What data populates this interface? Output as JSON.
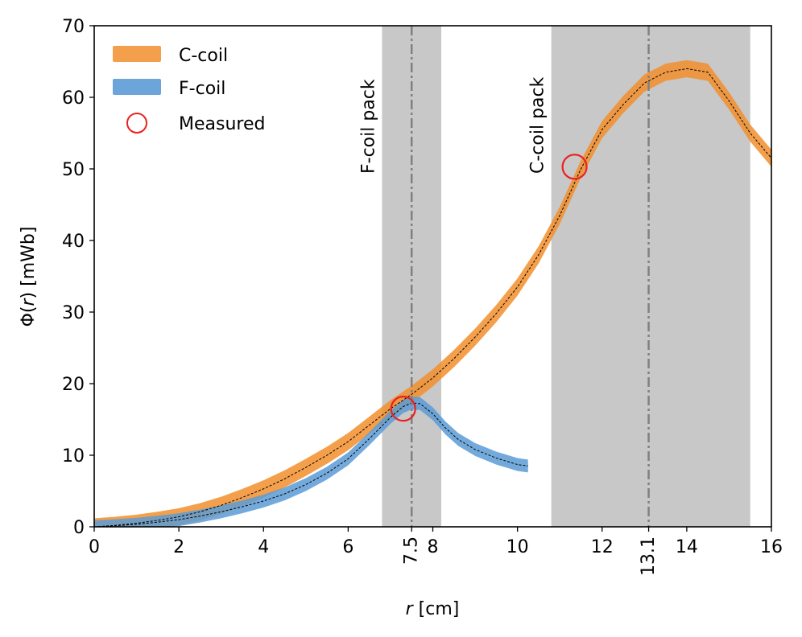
{
  "chart_data": {
    "type": "line",
    "xlabel_var": "r",
    "xlabel_unit": " [cm]",
    "ylabel_prefix": "Φ(",
    "ylabel_var": "r",
    "ylabel_suffix": ") [mWb]",
    "xlim": [
      0,
      16
    ],
    "ylim": [
      0,
      70
    ],
    "x_ticks": [
      0,
      2,
      4,
      6,
      8,
      10,
      12,
      14,
      16
    ],
    "y_ticks": [
      0,
      10,
      20,
      30,
      40,
      50,
      60,
      70
    ],
    "extra_x_ticks": [
      {
        "value": 7.5,
        "label": "7.5"
      },
      {
        "value": 13.1,
        "label": "13.1"
      }
    ],
    "shaded_regions": [
      {
        "name": "F-coil pack",
        "x_range": [
          6.8,
          8.2
        ],
        "center": 7.5,
        "label": "F-coil pack",
        "color": "#c8c8c8"
      },
      {
        "name": "C-coil pack",
        "x_range": [
          10.8,
          15.5
        ],
        "center": 13.1,
        "label": "C-coil pack",
        "color": "#c8c8c8"
      }
    ],
    "series": [
      {
        "name": "C-coil",
        "color": "#f28e2b",
        "x": [
          0,
          0.5,
          1,
          1.5,
          2,
          2.5,
          3,
          3.5,
          4,
          4.5,
          5,
          5.5,
          6,
          6.5,
          7,
          7.5,
          8,
          8.5,
          9,
          9.5,
          10,
          10.5,
          11,
          11.5,
          12,
          12.5,
          13,
          13.5,
          14,
          14.5,
          15,
          15.5,
          16
        ],
        "y": [
          0,
          0.2,
          0.5,
          0.9,
          1.4,
          2.1,
          3.0,
          4.1,
          5.3,
          6.7,
          8.3,
          10.0,
          11.9,
          14.2,
          16.5,
          18.5,
          20.8,
          23.5,
          26.5,
          29.8,
          33.5,
          38.0,
          43.5,
          50.0,
          55.5,
          59.0,
          62.0,
          63.5,
          64.0,
          63.5,
          59.5,
          55.0,
          51.5
        ],
        "band": 1.2
      },
      {
        "name": "F-coil",
        "color": "#5b9bd5",
        "x": [
          0,
          0.5,
          1,
          1.5,
          2,
          2.5,
          3,
          3.5,
          4,
          4.5,
          5,
          5.5,
          6,
          6.5,
          7,
          7.3,
          7.5,
          7.7,
          8,
          8.3,
          8.6,
          9,
          9.5,
          10,
          10.25
        ],
        "y": [
          0,
          0.15,
          0.35,
          0.65,
          1.0,
          1.5,
          2.1,
          2.8,
          3.6,
          4.6,
          5.9,
          7.5,
          9.5,
          12.3,
          15.3,
          16.8,
          17.3,
          17.2,
          15.8,
          13.8,
          12.2,
          10.8,
          9.6,
          8.7,
          8.5
        ],
        "band": 0.9
      }
    ],
    "measured": {
      "name": "Measured",
      "points": [
        {
          "x": 7.3,
          "y": 16.5
        },
        {
          "x": 11.35,
          "y": 50.3
        }
      ]
    },
    "legend": {
      "location": "top-left",
      "entries": [
        {
          "label": "C-coil",
          "color": "#f28e2b",
          "marker": "band"
        },
        {
          "label": "F-coil",
          "color": "#5b9bd5",
          "marker": "band"
        },
        {
          "label": "Measured",
          "color": "#e8221f",
          "marker": "open-circle"
        }
      ]
    },
    "ref_line_color": "#808080",
    "fit_line_color": "#000000"
  }
}
